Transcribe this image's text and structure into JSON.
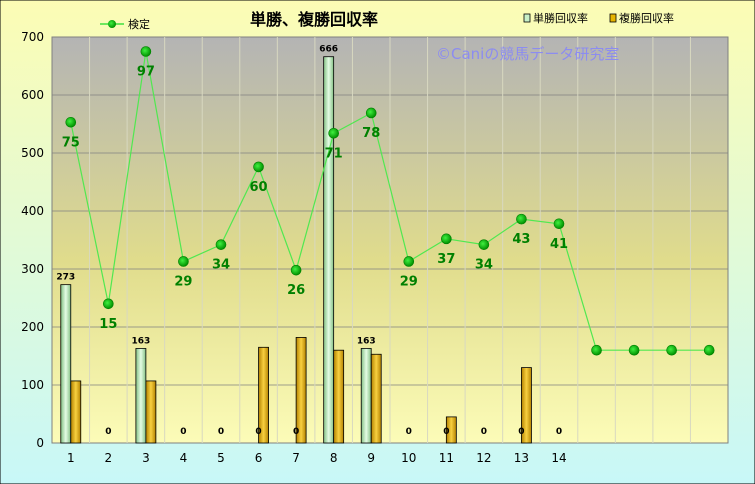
{
  "chart_data": {
    "type": "bar",
    "title": "単勝、複勝回収率",
    "watermark": "©Caniの競馬データ研究室",
    "categories": [
      "1",
      "2",
      "3",
      "4",
      "5",
      "6",
      "7",
      "8",
      "9",
      "10",
      "11",
      "12",
      "13",
      "14",
      "",
      "",
      "",
      ""
    ],
    "ylim": [
      0,
      700
    ],
    "yticks": [
      "0",
      "100",
      "200",
      "300",
      "400",
      "500",
      "600",
      "700"
    ],
    "grid": true,
    "legend_placement": "top",
    "series": [
      {
        "name": "単勝回収率",
        "type": "bar",
        "color": "#c8f0c8",
        "values": [
          273,
          0,
          163,
          0,
          0,
          0,
          0,
          666,
          163,
          0,
          0,
          0,
          0,
          0,
          null,
          null,
          null,
          null
        ],
        "labels": [
          "273",
          "0",
          "163",
          "0",
          "0",
          "0",
          "0",
          "666",
          "163",
          "0",
          "0",
          "0",
          "0",
          "0",
          "",
          "",
          "",
          ""
        ]
      },
      {
        "name": "複勝回収率",
        "type": "bar",
        "color": "#e6b400",
        "values": [
          107,
          0,
          107,
          0,
          0,
          165,
          182,
          160,
          153,
          0,
          45,
          0,
          130,
          0,
          null,
          null,
          null,
          null
        ]
      },
      {
        "name": "検定",
        "type": "line",
        "color": "#00c000",
        "values": [
          553,
          240,
          675,
          313,
          342,
          476,
          298,
          534,
          569,
          313,
          352,
          342,
          386,
          378,
          160,
          160,
          160,
          160
        ],
        "labels": [
          "75",
          "15",
          "97",
          "29",
          "34",
          "60",
          "26",
          "71",
          "78",
          "29",
          "37",
          "34",
          "43",
          "41",
          "",
          "",
          "",
          ""
        ]
      }
    ]
  }
}
